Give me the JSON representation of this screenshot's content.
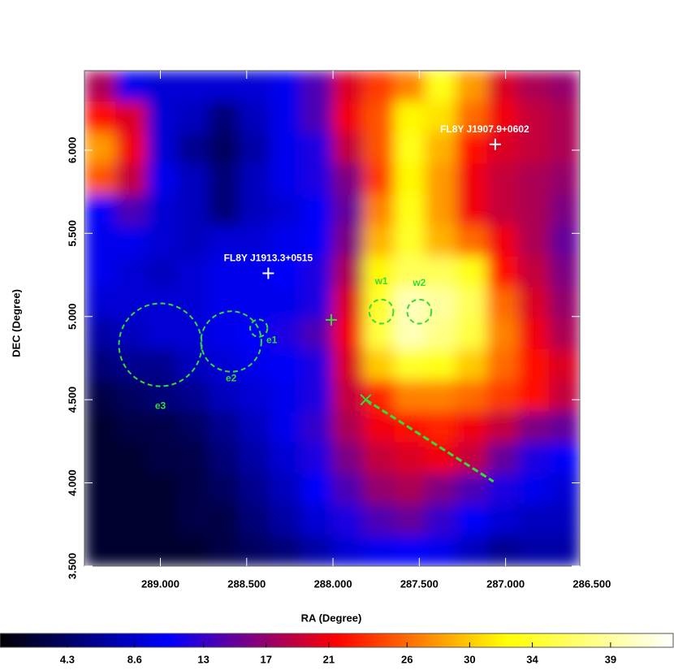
{
  "chart_data": {
    "type": "heatmap",
    "xlabel": "RA (Degree)",
    "ylabel": "DEC (Degree)",
    "xlim": [
      289.44,
      286.57
    ],
    "ylim": [
      3.5,
      6.478
    ],
    "xticks": [
      {
        "value": 289,
        "label": "289.000"
      },
      {
        "value": 288.5,
        "label": "288.500"
      },
      {
        "value": 288,
        "label": "288.000"
      },
      {
        "value": 287.5,
        "label": "287.500"
      },
      {
        "value": 287,
        "label": "287.000"
      },
      {
        "value": 286.5,
        "label": "286.500"
      }
    ],
    "yticks": [
      {
        "value": 3.5,
        "label": "3.500"
      },
      {
        "value": 4,
        "label": "4.000"
      },
      {
        "value": 4.5,
        "label": "4.500"
      },
      {
        "value": 5,
        "label": "5.000"
      },
      {
        "value": 5.5,
        "label": "5.500"
      },
      {
        "value": 6,
        "label": "6.000"
      }
    ],
    "colormap": [
      "#000000",
      "#0000ff",
      "#ff0000",
      "#ffff00",
      "#ffffff"
    ],
    "zlim": [
      0,
      43
    ],
    "zticks": [
      4.3,
      8.6,
      13,
      17,
      21,
      26,
      30,
      34,
      39
    ],
    "z": [
      [
        18,
        10,
        9,
        9,
        9,
        9,
        10,
        14,
        20,
        24,
        27,
        33,
        28,
        20,
        18,
        17
      ],
      [
        22,
        20,
        9,
        8,
        5,
        8,
        10,
        14,
        21,
        25,
        32,
        31,
        26,
        21,
        19,
        18
      ],
      [
        28,
        21,
        9,
        6,
        4,
        7,
        10,
        12,
        19,
        25,
        33,
        29,
        22,
        20,
        19,
        18
      ],
      [
        25,
        19,
        10,
        8,
        5,
        8,
        10,
        12,
        16,
        24,
        32,
        28,
        21,
        19,
        18,
        17
      ],
      [
        11,
        14,
        9,
        8,
        5,
        8,
        9,
        11,
        15,
        27,
        33,
        28,
        21,
        19,
        18,
        16
      ],
      [
        10,
        10,
        9,
        8,
        9,
        9,
        10,
        11,
        16,
        29,
        34,
        29,
        26,
        21,
        18,
        15
      ],
      [
        10,
        9,
        8,
        9,
        10,
        10,
        11,
        12,
        18,
        32,
        36,
        36,
        33,
        22,
        19,
        16
      ],
      [
        9,
        9,
        9,
        9,
        10,
        10,
        10,
        12,
        20,
        34,
        40,
        39,
        36,
        26,
        20,
        17
      ],
      [
        7,
        8,
        9,
        9,
        10,
        11,
        12,
        14,
        21,
        35,
        40,
        38,
        35,
        27,
        21,
        18
      ],
      [
        5,
        6,
        6,
        8,
        9,
        10,
        11,
        12,
        20,
        30,
        34,
        33,
        30,
        26,
        22,
        20
      ],
      [
        3,
        4,
        5,
        6,
        8,
        9,
        10,
        12,
        19,
        23,
        27,
        27,
        26,
        24,
        22,
        19
      ],
      [
        2,
        3,
        3,
        4,
        6,
        8,
        10,
        13,
        18,
        21,
        22,
        23,
        21,
        19,
        16,
        15
      ],
      [
        2,
        2,
        3,
        3,
        5,
        7,
        9,
        12,
        16,
        19,
        20,
        21,
        19,
        15,
        12,
        11
      ],
      [
        2,
        2,
        2,
        3,
        4,
        6,
        8,
        11,
        14,
        17,
        18,
        16,
        14,
        12,
        10,
        9
      ],
      [
        2,
        2,
        2,
        3,
        3,
        5,
        7,
        9,
        12,
        14,
        15,
        13,
        11,
        9,
        8,
        8
      ],
      [
        2,
        2,
        2,
        2,
        3,
        4,
        5,
        7,
        9,
        10,
        11,
        10,
        8,
        6,
        7,
        7
      ]
    ],
    "region_color": "#33dd33",
    "regions": [
      {
        "name": "e3",
        "ra": 289.0,
        "dec": 4.83,
        "r": 0.24
      },
      {
        "name": "e2",
        "ra": 288.59,
        "dec": 4.85,
        "r": 0.175
      },
      {
        "name": "e1",
        "ra": 288.43,
        "dec": 4.93,
        "r": 0.05
      },
      {
        "name": "w1",
        "ra": 287.72,
        "dec": 5.03,
        "r": 0.07
      },
      {
        "name": "w2",
        "ra": 287.5,
        "dec": 5.03,
        "r": 0.07
      }
    ],
    "source_color": "#ffffff",
    "sources": [
      {
        "name": "FL8Y J1913.3+0515",
        "ra": 288.375,
        "dec": 5.26
      },
      {
        "name": "FL8Y J1907.9+0602",
        "ra": 287.06,
        "dec": 6.035
      }
    ],
    "markers": [
      {
        "shape": "plus",
        "ra": 288.01,
        "dec": 4.98
      },
      {
        "shape": "x",
        "ra": 287.81,
        "dec": 4.5
      }
    ],
    "track": {
      "ra": [
        287.81,
        287.07
      ],
      "dec": [
        4.5,
        4.008
      ]
    }
  }
}
